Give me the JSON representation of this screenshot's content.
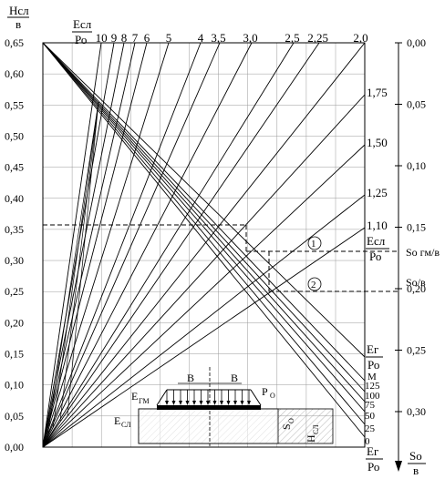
{
  "axis_left": {
    "title_num": "Нсл",
    "title_den": "в",
    "ticks": [
      "0,65",
      "0,60",
      "0,55",
      "0,50",
      "0,45",
      "0,40",
      "0,35",
      "0,30",
      "0,25",
      "0,20",
      "0,15",
      "0,10",
      "0,05",
      "0,00"
    ]
  },
  "axis_right": {
    "title_num": "So",
    "title_den": "в",
    "ticks": [
      "0,00",
      "0,05",
      "0,10",
      "0,15",
      "0,20",
      "0,25",
      "0,30"
    ]
  },
  "top_scale": {
    "title_num": "Есл",
    "title_den": "Ро",
    "labels": [
      "10",
      "9",
      "8",
      "7",
      "6",
      "5",
      "4",
      "3,5",
      "3,0",
      "2,5",
      "2,25",
      "2,0"
    ]
  },
  "right_ratio_labels": [
    "1,75",
    "1,50",
    "1,25",
    "1,10"
  ],
  "right_mid_fraction": {
    "num": "Есл",
    "den": "Ро"
  },
  "so_gm_label": "So гм/в",
  "so_b_label": "So/в",
  "markers": [
    "1",
    "2"
  ],
  "bottom_right": {
    "title_num": "Ег",
    "title_den": "Ро",
    "m_label": "М",
    "values": [
      "125",
      "100",
      "75",
      "50",
      "25",
      "0"
    ],
    "bottom_num": "Ег",
    "bottom_den": "Ро"
  },
  "inset": {
    "b_left": "В",
    "b_right": "В",
    "e_gm": "Е",
    "e_gm_sub": "ГМ",
    "p_o": "Р",
    "p_o_sub": "О",
    "e_sl": "Е",
    "e_sl_sub": "СЛ",
    "s_o": "S",
    "s_o_sub": "O",
    "h_sl": "Н",
    "h_sl_sub": "СЛ"
  }
}
